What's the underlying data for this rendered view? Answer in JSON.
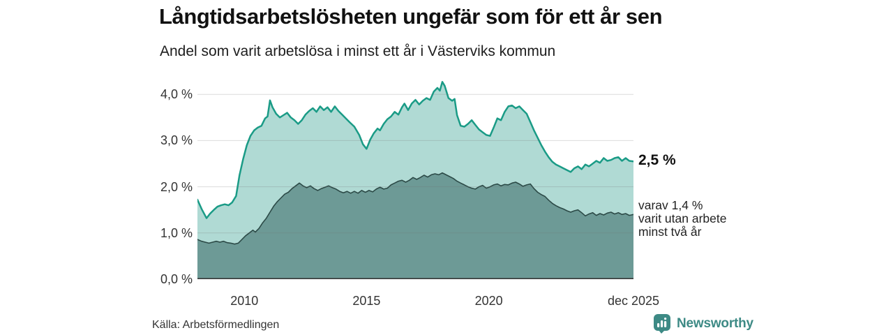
{
  "header": {
    "title": "Långtidsarbetslösheten ungefär som för ett år sen",
    "subtitle": "Andel som varit arbetslösa i minst ett år i Västerviks kommun"
  },
  "annotations": {
    "latest_total_label": "2,5 %",
    "breakdown_lines": [
      "varav 1,4 %",
      "varit utan arbete",
      "minst två år"
    ]
  },
  "footer": {
    "source": "Källa: Arbetsförmedlingen",
    "brand_name": "Newsworthy"
  },
  "colors": {
    "series1_line": "#1a9b86",
    "series1_fill": "#b0dad4",
    "series2_line": "#2c4a47",
    "series2_fill": "#6d9a96",
    "grid_overlay": "rgba(110,110,110,0.25)",
    "axis": "#3a3a3a",
    "tick_text": "#333333",
    "brand": "#3d8a85"
  },
  "chart_data": {
    "type": "area",
    "title": "Långtidsarbetslösheten ungefär som för ett år sen",
    "subtitle": "Andel som varit arbetslösa i minst ett år i Västerviks kommun",
    "xlabel": "",
    "ylabel": "",
    "grid": true,
    "legend_position": "annotated-at-line-end",
    "x_range": [
      2008.08,
      2025.92
    ],
    "y_range": [
      0,
      4.38
    ],
    "x_ticks": [
      {
        "label": "2010",
        "x": 2010
      },
      {
        "label": "2015",
        "x": 2015
      },
      {
        "label": "2020",
        "x": 2020
      },
      {
        "label": "dec 2025",
        "x": 2025.92
      }
    ],
    "y_ticks": [
      {
        "label": "0,0 %",
        "v": 0
      },
      {
        "label": "1,0 %",
        "v": 1
      },
      {
        "label": "2,0 %",
        "v": 2
      },
      {
        "label": "3,0 %",
        "v": 3
      },
      {
        "label": "4,0 %",
        "v": 4
      }
    ],
    "series": [
      {
        "name": "Andel arbetslösa minst ett år",
        "end_label": "2,5 %",
        "line": "#1a9b86",
        "fill": "#b0dad4",
        "width": 2.5,
        "points": [
          [
            2008.08,
            1.72
          ],
          [
            2008.25,
            1.52
          ],
          [
            2008.45,
            1.32
          ],
          [
            2008.6,
            1.42
          ],
          [
            2008.75,
            1.5
          ],
          [
            2008.9,
            1.57
          ],
          [
            2009.05,
            1.6
          ],
          [
            2009.2,
            1.62
          ],
          [
            2009.35,
            1.6
          ],
          [
            2009.5,
            1.66
          ],
          [
            2009.66,
            1.8
          ],
          [
            2009.8,
            2.25
          ],
          [
            2009.95,
            2.6
          ],
          [
            2010.1,
            2.9
          ],
          [
            2010.25,
            3.1
          ],
          [
            2010.4,
            3.22
          ],
          [
            2010.55,
            3.28
          ],
          [
            2010.7,
            3.32
          ],
          [
            2010.85,
            3.48
          ],
          [
            2010.95,
            3.52
          ],
          [
            2011.05,
            3.87
          ],
          [
            2011.15,
            3.72
          ],
          [
            2011.3,
            3.58
          ],
          [
            2011.45,
            3.5
          ],
          [
            2011.6,
            3.55
          ],
          [
            2011.75,
            3.6
          ],
          [
            2011.9,
            3.5
          ],
          [
            2012.05,
            3.44
          ],
          [
            2012.2,
            3.36
          ],
          [
            2012.35,
            3.44
          ],
          [
            2012.5,
            3.56
          ],
          [
            2012.65,
            3.64
          ],
          [
            2012.8,
            3.7
          ],
          [
            2012.95,
            3.62
          ],
          [
            2013.1,
            3.74
          ],
          [
            2013.25,
            3.66
          ],
          [
            2013.4,
            3.72
          ],
          [
            2013.55,
            3.62
          ],
          [
            2013.7,
            3.74
          ],
          [
            2013.85,
            3.64
          ],
          [
            2014,
            3.56
          ],
          [
            2014.15,
            3.48
          ],
          [
            2014.3,
            3.4
          ],
          [
            2014.5,
            3.3
          ],
          [
            2014.7,
            3.12
          ],
          [
            2014.85,
            2.92
          ],
          [
            2015,
            2.82
          ],
          [
            2015.15,
            3.02
          ],
          [
            2015.3,
            3.16
          ],
          [
            2015.45,
            3.26
          ],
          [
            2015.55,
            3.22
          ],
          [
            2015.7,
            3.36
          ],
          [
            2015.85,
            3.46
          ],
          [
            2016,
            3.52
          ],
          [
            2016.15,
            3.62
          ],
          [
            2016.3,
            3.56
          ],
          [
            2016.45,
            3.72
          ],
          [
            2016.55,
            3.8
          ],
          [
            2016.7,
            3.66
          ],
          [
            2016.85,
            3.8
          ],
          [
            2017,
            3.88
          ],
          [
            2017.15,
            3.78
          ],
          [
            2017.3,
            3.86
          ],
          [
            2017.45,
            3.92
          ],
          [
            2017.6,
            3.88
          ],
          [
            2017.75,
            4.06
          ],
          [
            2017.9,
            4.14
          ],
          [
            2018,
            4.08
          ],
          [
            2018.1,
            4.27
          ],
          [
            2018.2,
            4.18
          ],
          [
            2018.35,
            3.92
          ],
          [
            2018.5,
            3.86
          ],
          [
            2018.6,
            3.9
          ],
          [
            2018.7,
            3.55
          ],
          [
            2018.85,
            3.32
          ],
          [
            2019,
            3.3
          ],
          [
            2019.15,
            3.36
          ],
          [
            2019.3,
            3.44
          ],
          [
            2019.45,
            3.34
          ],
          [
            2019.6,
            3.24
          ],
          [
            2019.75,
            3.18
          ],
          [
            2019.9,
            3.12
          ],
          [
            2020.05,
            3.1
          ],
          [
            2020.2,
            3.28
          ],
          [
            2020.35,
            3.48
          ],
          [
            2020.5,
            3.44
          ],
          [
            2020.65,
            3.62
          ],
          [
            2020.8,
            3.74
          ],
          [
            2020.95,
            3.76
          ],
          [
            2021.1,
            3.7
          ],
          [
            2021.25,
            3.74
          ],
          [
            2021.4,
            3.66
          ],
          [
            2021.55,
            3.58
          ],
          [
            2021.7,
            3.4
          ],
          [
            2021.85,
            3.22
          ],
          [
            2022,
            3.06
          ],
          [
            2022.15,
            2.9
          ],
          [
            2022.3,
            2.76
          ],
          [
            2022.45,
            2.64
          ],
          [
            2022.6,
            2.54
          ],
          [
            2022.75,
            2.48
          ],
          [
            2022.9,
            2.44
          ],
          [
            2023.05,
            2.4
          ],
          [
            2023.2,
            2.36
          ],
          [
            2023.35,
            2.32
          ],
          [
            2023.5,
            2.4
          ],
          [
            2023.65,
            2.44
          ],
          [
            2023.8,
            2.38
          ],
          [
            2023.95,
            2.48
          ],
          [
            2024.1,
            2.44
          ],
          [
            2024.25,
            2.5
          ],
          [
            2024.4,
            2.56
          ],
          [
            2024.55,
            2.52
          ],
          [
            2024.7,
            2.62
          ],
          [
            2024.85,
            2.56
          ],
          [
            2025,
            2.58
          ],
          [
            2025.15,
            2.62
          ],
          [
            2025.3,
            2.64
          ],
          [
            2025.45,
            2.56
          ],
          [
            2025.6,
            2.62
          ],
          [
            2025.75,
            2.56
          ],
          [
            2025.92,
            2.55
          ]
        ]
      },
      {
        "name": "Andel utan arbete minst två år",
        "end_label": "varav 1,4 % varit utan arbete minst två år",
        "line": "#2c4a47",
        "fill": "#6d9a96",
        "width": 1.6,
        "points": [
          [
            2008.08,
            0.86
          ],
          [
            2008.25,
            0.82
          ],
          [
            2008.4,
            0.8
          ],
          [
            2008.55,
            0.78
          ],
          [
            2008.7,
            0.8
          ],
          [
            2008.85,
            0.82
          ],
          [
            2009,
            0.8
          ],
          [
            2009.15,
            0.82
          ],
          [
            2009.3,
            0.79
          ],
          [
            2009.45,
            0.78
          ],
          [
            2009.6,
            0.76
          ],
          [
            2009.75,
            0.78
          ],
          [
            2009.9,
            0.86
          ],
          [
            2010.05,
            0.94
          ],
          [
            2010.2,
            1
          ],
          [
            2010.35,
            1.06
          ],
          [
            2010.45,
            1.02
          ],
          [
            2010.6,
            1.1
          ],
          [
            2010.75,
            1.22
          ],
          [
            2010.9,
            1.32
          ],
          [
            2011.05,
            1.45
          ],
          [
            2011.2,
            1.58
          ],
          [
            2011.35,
            1.68
          ],
          [
            2011.5,
            1.76
          ],
          [
            2011.65,
            1.84
          ],
          [
            2011.8,
            1.88
          ],
          [
            2011.95,
            1.96
          ],
          [
            2012.1,
            2.02
          ],
          [
            2012.25,
            2.08
          ],
          [
            2012.4,
            2.02
          ],
          [
            2012.55,
            1.98
          ],
          [
            2012.7,
            2.02
          ],
          [
            2012.85,
            1.96
          ],
          [
            2013,
            1.92
          ],
          [
            2013.15,
            1.96
          ],
          [
            2013.3,
            1.99
          ],
          [
            2013.45,
            2.02
          ],
          [
            2013.6,
            1.98
          ],
          [
            2013.75,
            1.95
          ],
          [
            2013.9,
            1.9
          ],
          [
            2014.05,
            1.87
          ],
          [
            2014.2,
            1.9
          ],
          [
            2014.35,
            1.86
          ],
          [
            2014.5,
            1.9
          ],
          [
            2014.65,
            1.86
          ],
          [
            2014.8,
            1.92
          ],
          [
            2014.95,
            1.88
          ],
          [
            2015.1,
            1.92
          ],
          [
            2015.25,
            1.89
          ],
          [
            2015.4,
            1.95
          ],
          [
            2015.55,
            1.99
          ],
          [
            2015.7,
            1.95
          ],
          [
            2015.85,
            1.97
          ],
          [
            2016,
            2.04
          ],
          [
            2016.15,
            2.08
          ],
          [
            2016.3,
            2.12
          ],
          [
            2016.45,
            2.14
          ],
          [
            2016.6,
            2.1
          ],
          [
            2016.75,
            2.14
          ],
          [
            2016.9,
            2.2
          ],
          [
            2017.05,
            2.16
          ],
          [
            2017.2,
            2.2
          ],
          [
            2017.35,
            2.25
          ],
          [
            2017.5,
            2.21
          ],
          [
            2017.65,
            2.26
          ],
          [
            2017.8,
            2.28
          ],
          [
            2017.95,
            2.26
          ],
          [
            2018.1,
            2.3
          ],
          [
            2018.25,
            2.26
          ],
          [
            2018.4,
            2.22
          ],
          [
            2018.55,
            2.18
          ],
          [
            2018.7,
            2.12
          ],
          [
            2018.85,
            2.08
          ],
          [
            2019,
            2.04
          ],
          [
            2019.15,
            2
          ],
          [
            2019.3,
            1.97
          ],
          [
            2019.45,
            1.95
          ],
          [
            2019.6,
            2
          ],
          [
            2019.75,
            2.03
          ],
          [
            2019.9,
            1.97
          ],
          [
            2020.05,
            2
          ],
          [
            2020.2,
            2.04
          ],
          [
            2020.35,
            2.06
          ],
          [
            2020.5,
            2.02
          ],
          [
            2020.65,
            2.05
          ],
          [
            2020.8,
            2.04
          ],
          [
            2020.95,
            2.08
          ],
          [
            2021.1,
            2.1
          ],
          [
            2021.25,
            2.06
          ],
          [
            2021.4,
            2.01
          ],
          [
            2021.55,
            2.04
          ],
          [
            2021.7,
            2.06
          ],
          [
            2021.85,
            1.96
          ],
          [
            2022,
            1.88
          ],
          [
            2022.15,
            1.83
          ],
          [
            2022.3,
            1.79
          ],
          [
            2022.45,
            1.71
          ],
          [
            2022.6,
            1.64
          ],
          [
            2022.75,
            1.59
          ],
          [
            2022.9,
            1.55
          ],
          [
            2023.05,
            1.52
          ],
          [
            2023.2,
            1.48
          ],
          [
            2023.35,
            1.45
          ],
          [
            2023.5,
            1.48
          ],
          [
            2023.65,
            1.5
          ],
          [
            2023.8,
            1.44
          ],
          [
            2023.95,
            1.37
          ],
          [
            2024.1,
            1.41
          ],
          [
            2024.25,
            1.44
          ],
          [
            2024.4,
            1.38
          ],
          [
            2024.55,
            1.42
          ],
          [
            2024.7,
            1.39
          ],
          [
            2024.85,
            1.43
          ],
          [
            2025,
            1.45
          ],
          [
            2025.15,
            1.41
          ],
          [
            2025.3,
            1.44
          ],
          [
            2025.45,
            1.4
          ],
          [
            2025.6,
            1.42
          ],
          [
            2025.75,
            1.38
          ],
          [
            2025.92,
            1.4
          ]
        ]
      }
    ]
  }
}
